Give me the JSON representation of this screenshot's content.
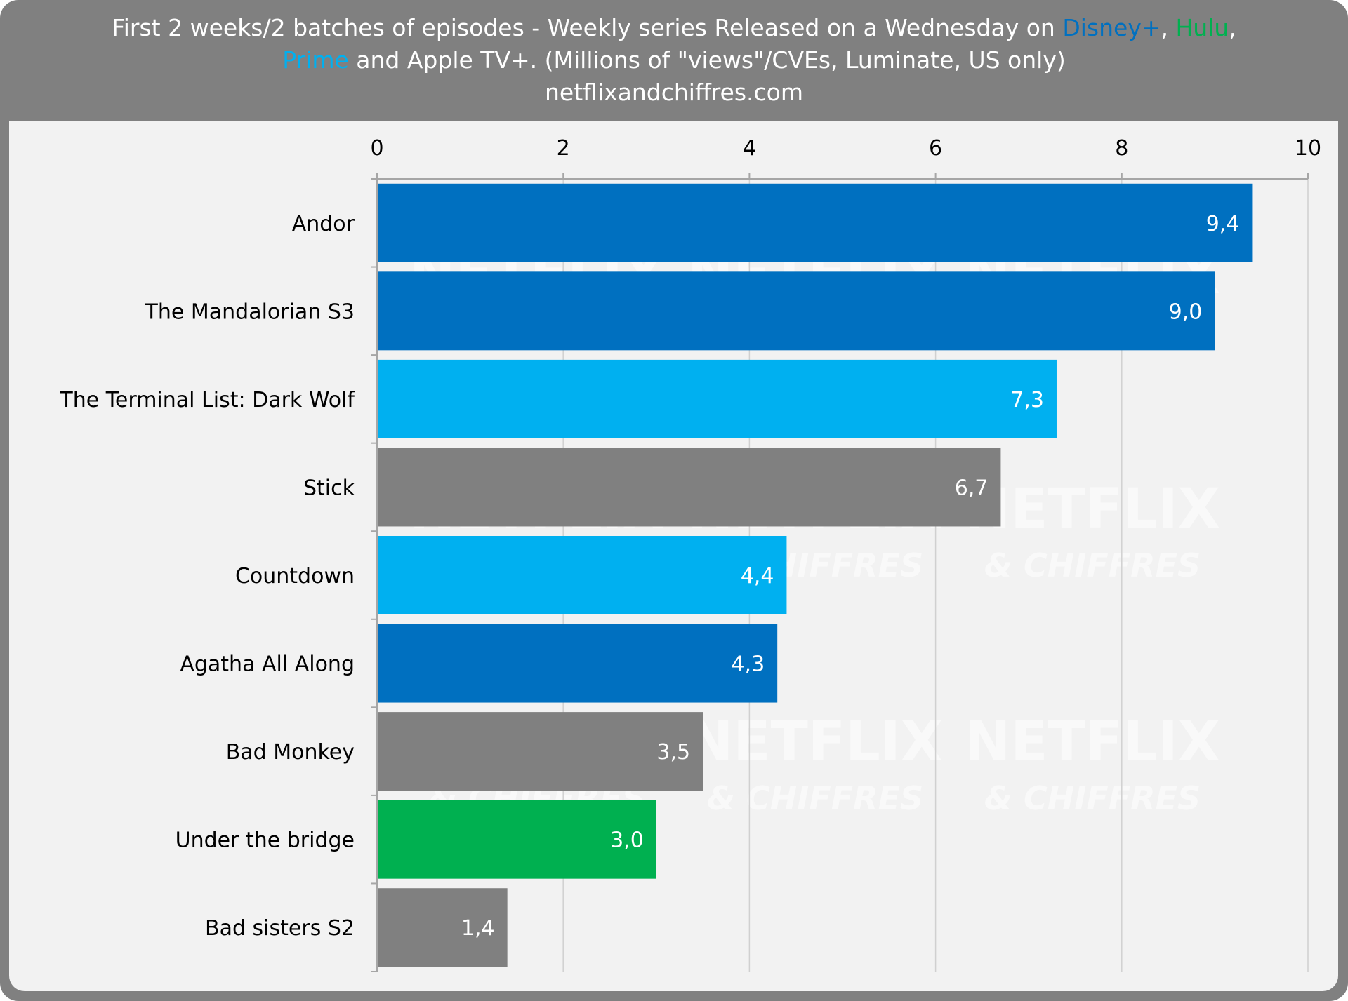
{
  "header": {
    "line1_prefix": "First 2 weeks/2 batches of episodes - Weekly series Released on a Wednesday on ",
    "disney": "Disney+",
    "comma1": ", ",
    "hulu": "Hulu",
    "comma2": ",",
    "prime": "Prime",
    "line2_rest": " and Apple TV+. (Millions of \"views\"/CVEs, Luminate, US only)",
    "line3": "netflixandchiffres.com"
  },
  "watermark": {
    "big": "NETFLIX",
    "small": "& CHIFFRES"
  },
  "colors": {
    "disney": "#0070c0",
    "hulu": "#00b050",
    "prime": "#00b0f0",
    "other": "#808080",
    "panel": "#f2f2f2",
    "frame": "#808080"
  },
  "chart_data": {
    "type": "bar",
    "orientation": "horizontal",
    "categories": [
      "Andor",
      "The Mandalorian S3",
      "The Terminal List: Dark Wolf",
      "Stick",
      "Countdown",
      "Agatha All Along",
      "Bad Monkey",
      "Under the bridge",
      "Bad sisters S2"
    ],
    "values": [
      9.4,
      9.0,
      7.3,
      6.7,
      4.4,
      4.3,
      3.5,
      3.0,
      1.4
    ],
    "value_labels": [
      "9,4",
      "9,0",
      "7,3",
      "6,7",
      "4,4",
      "4,3",
      "3,5",
      "3,0",
      "1,4"
    ],
    "platforms": [
      "disney",
      "disney",
      "prime",
      "other",
      "prime",
      "disney",
      "other",
      "hulu",
      "other"
    ],
    "xlim": [
      0,
      10
    ],
    "xticks": [
      0,
      2,
      4,
      6,
      8,
      10
    ],
    "xtick_labels": [
      "0",
      "2",
      "4",
      "6",
      "8",
      "10"
    ],
    "axis_position": "top",
    "grid": true,
    "xlabel": "",
    "ylabel": ""
  }
}
